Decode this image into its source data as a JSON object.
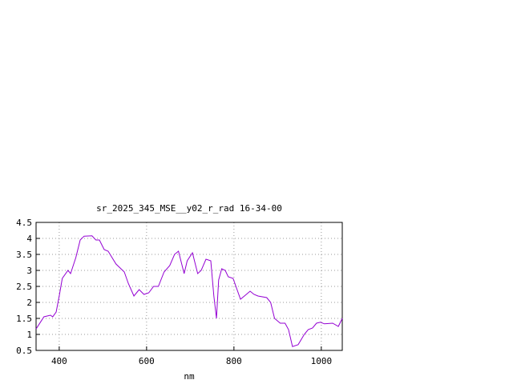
{
  "chart_data": {
    "type": "line",
    "title": "sr_2025_345_MSE__y02_r_rad 16-34-00",
    "x_label": "nm",
    "x": [
      347,
      365,
      380,
      385,
      393,
      400,
      407,
      420,
      426,
      438,
      448,
      457,
      475,
      484,
      492,
      503,
      512,
      530,
      549,
      558,
      571,
      583,
      594,
      605,
      616,
      627,
      640,
      653,
      664,
      673,
      686,
      693,
      705,
      717,
      725,
      736,
      747,
      754,
      760,
      765,
      772,
      780,
      787,
      798,
      815,
      824,
      837,
      846,
      855,
      875,
      884,
      893,
      906,
      917,
      925,
      934,
      947,
      961,
      970,
      980,
      989,
      998,
      1007,
      1026,
      1039,
      1048
    ],
    "series": [
      {
        "color": "#9400d3",
        "values": [
          1.17,
          1.55,
          1.6,
          1.55,
          1.7,
          2.2,
          2.75,
          3.0,
          2.9,
          3.4,
          3.95,
          4.07,
          4.08,
          3.95,
          3.95,
          3.65,
          3.6,
          3.2,
          2.95,
          2.6,
          2.2,
          2.4,
          2.25,
          2.3,
          2.5,
          2.5,
          2.95,
          3.15,
          3.5,
          3.6,
          2.9,
          3.3,
          3.55,
          2.9,
          3.0,
          3.35,
          3.3,
          2.2,
          1.5,
          2.7,
          3.05,
          3.0,
          2.8,
          2.75,
          2.1,
          2.2,
          2.35,
          2.25,
          2.2,
          2.15,
          2.0,
          1.5,
          1.35,
          1.35,
          1.15,
          0.62,
          0.68,
          1.0,
          1.15,
          1.2,
          1.35,
          1.38,
          1.33,
          1.35,
          1.25,
          1.5
        ]
      }
    ],
    "xlim": [
      347,
      1048
    ],
    "xticks": [
      400,
      600,
      800,
      1000
    ],
    "ylim": [
      0.5,
      4.5
    ],
    "yticks": [
      0.5,
      1,
      1.5,
      2,
      2.5,
      3,
      3.5,
      4,
      4.5
    ],
    "grid": true
  }
}
